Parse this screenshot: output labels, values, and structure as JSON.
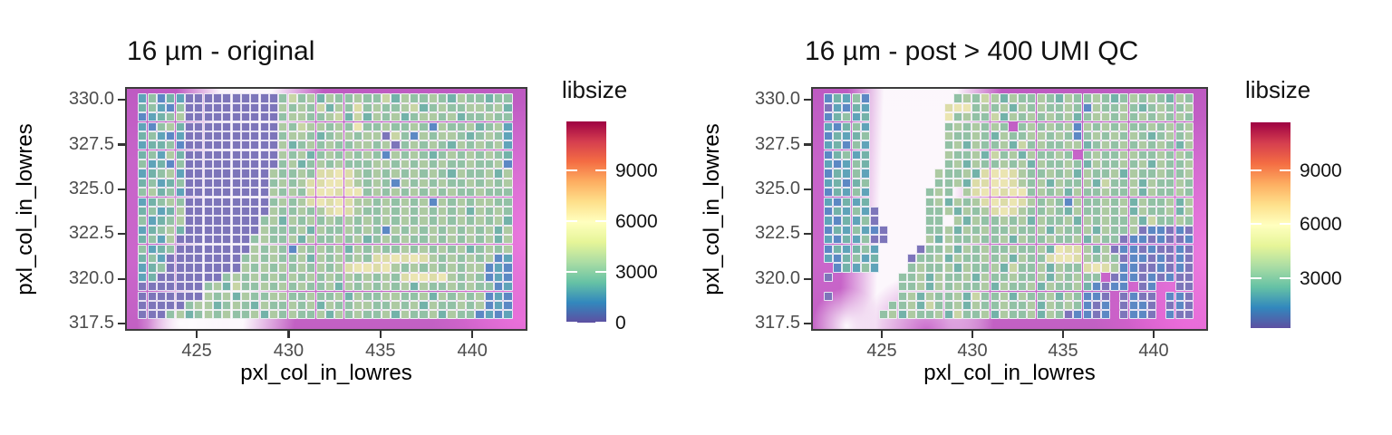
{
  "colors": {
    "bg_magenta": "#c764c9",
    "bg_pink_edge": "#f07ce0",
    "panel_border": "#3c3c3c",
    "tick_label": "#4d4d4d",
    "axis_text": "#000000",
    "cell_stroke": "rgba(250,247,253,0.85)",
    "bins": {
      "0": "#7d75ba",
      "1": "#5c88c4",
      "2": "#5fa3b9",
      "3": "#73b2a9",
      "4": "#92c1a5",
      "5": "#adcaa2",
      "6": "#c8d5a5",
      "7": "#dcdca8",
      "8": "#ebe5b2",
      "9": "#f2ecc2"
    },
    "spectral_top_to_bottom": [
      "#9e0142",
      "#d53e4f",
      "#f46d43",
      "#fdae61",
      "#fee08b",
      "#ffffbf",
      "#e6f598",
      "#abdda4",
      "#66c2a5",
      "#3288bd",
      "#5e4fa2"
    ]
  },
  "chart_data": [
    {
      "type": "heatmap",
      "title": "16 µm - original",
      "xlabel": "pxl_col_in_lowres",
      "ylabel": "pxl_col_in_lowres",
      "xlim": [
        421.1,
        443.0
      ],
      "ylim": [
        317.1,
        330.72
      ],
      "xticks": [
        "425",
        "430",
        "435",
        "440"
      ],
      "yticks": [
        "317.5",
        "320.0",
        "322.5",
        "325.0",
        "327.5",
        "330.0"
      ],
      "legend": {
        "title": "libsize",
        "ticks": [
          "0",
          "3000",
          "6000",
          "9000"
        ],
        "domain": [
          0,
          11900
        ]
      },
      "value_bins_approx_libsize": {
        "0": 400,
        "1": 1300,
        "2": 2000,
        "3": 2700,
        "4": 3400,
        "5": 4200,
        "6": 5000,
        "7": 5800,
        "8": 6600,
        "9": 7400
      },
      "grid": {
        "x0": 422.05,
        "y0": 330.09,
        "dx": 0.51,
        "dy": 0.526,
        "cols": 40,
        "rows": 24,
        "cells": [
          "2413200000000004645354454463544543544344",
          "3421400000000005454635474544563454455453",
          "1234500000000004554456363545345545344544",
          "2145300000000005465545484454454154453452",
          "3421200000000004554345545506415455434542",
          "2334100000000005345454455450454543545452",
          "3425300000000005453454545415454345454543",
          "4231400000000004534545444554545454454451",
          "2345200000000054454778754545454543544535",
          "3423400000000045457788754541545454454545",
          "4534200000000054547887884545454545445444",
          "2345400000000045457878755454545154545544",
          "3423500000000054454578754454545454535454",
          "4234500000000453545454545454545454545453",
          "2345300000000544453544545415454545454535",
          "3425000000004544535445453454544545454535",
          "4234000000005454154545354544545454534545",
          "3420000000045454453545454778787545454512",
          "2340000000054545454545788785454545455121",
          "2300000004545454545454545454788785454121",
          "0000000453644545454453545454535445454412",
          "0000000545354455445445354455445354545121",
          "0000045534543544545354455445453544545121",
          "0004534545445354544535454453544535441212"
        ]
      }
    },
    {
      "type": "heatmap",
      "title": "16 µm - post > 400 UMI QC",
      "xlabel": "pxl_col_in_lowres",
      "ylabel": "pxl_col_in_lowres",
      "xlim": [
        421.1,
        443.0
      ],
      "ylim": [
        317.1,
        330.72
      ],
      "xticks": [
        "425",
        "430",
        "435",
        "440"
      ],
      "yticks": [
        "317.5",
        "320.0",
        "322.5",
        "325.0",
        "327.5",
        "330.0"
      ],
      "legend": {
        "title": "libsize",
        "ticks": [
          "3000",
          "6000",
          "9000"
        ],
        "domain": [
          230,
          11660
        ]
      },
      "value_bins_approx_libsize": {
        "0": 500,
        "1": 1300,
        "2": 2000,
        "3": 2700,
        "4": 3400,
        "5": 4200,
        "6": 5000,
        "7": 5800,
        "8": 6600,
        "9": 7400
      },
      "grid": {
        "x0": 422.05,
        "y0": 330.09,
        "dx": 0.51,
        "dy": 0.526,
        "cols": 40,
        "rows": 24,
        "cells": [
          "13241.........45465354454354454345454354",
          "02132........788454535454454154454345445",
          "13423........845446354545453455454545454",
          "21342........4545454.4545451545454454545",
          "13234........544543544554541454545434545",
          "23142........453544536454455345454545435",
          "13423........54453645354454.454455445454",
          "21243........453544545354454354454535445",
          "13242.......5445378875445453544535445445",
          "23134.......4453778875453544536445354454",
          "13242......454.5788788454535445445354454",
          "21323......45354578787545415445453544535",
          "132420.....44535457875445435445453544535",
          "213240.....44.53544545354453545445364454",
          "1324210....44535454454453544535445011010",
          "2132400....53544544535445445354401101001",
          "132342....044535454454453877535011010010",
          "213423...0445354454535447887545401101010",
          ".13242...4544535445364453544787511001010",
          "0.......4453544535445445354544.011010100",
          "........4453545445354453544531011.01..00",
          "0.......45354453644535445354110.0100.110",
          ".......445364453544544535454101.0110.010",
          "......4535445364453544535401101.0110.100"
        ]
      }
    }
  ]
}
